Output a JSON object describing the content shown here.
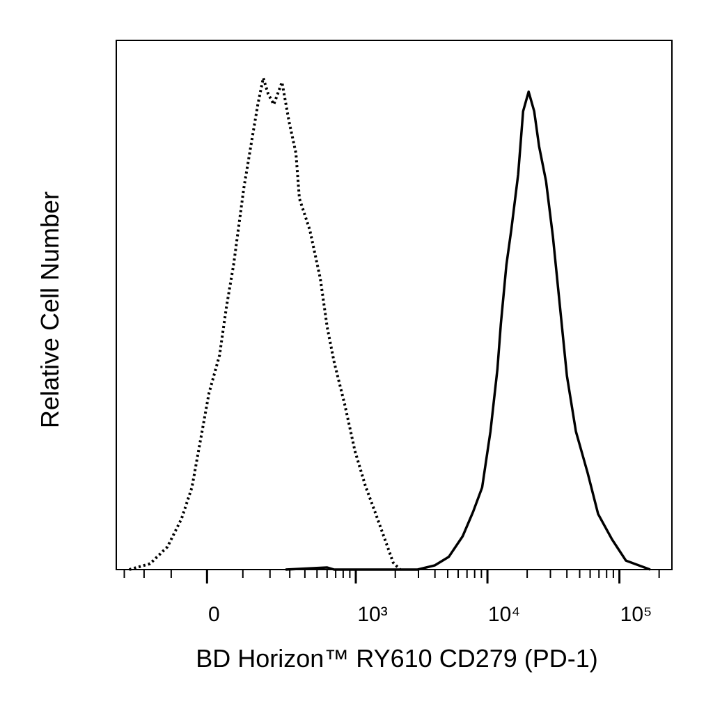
{
  "chart_data": {
    "type": "histogram-overlay",
    "x_label": "BD Horizon™ RY610 CD279 (PD-1)",
    "y_label": "Relative Cell Number",
    "xscale": "biexponential",
    "x_linear_width": 150,
    "xlim": [
      -350,
      250000
    ],
    "ylim": [
      0,
      100
    ],
    "xticks": [
      0,
      {
        "value": 1000,
        "label": "10³"
      },
      {
        "value": 10000,
        "label": "10⁴"
      },
      {
        "value": 100000,
        "label": "10⁵"
      }
    ],
    "xminorticks": [
      -300,
      -200,
      -100,
      100,
      200,
      300,
      400,
      500,
      600,
      700,
      800,
      900,
      2000,
      3000,
      4000,
      5000,
      6000,
      7000,
      8000,
      9000,
      20000,
      30000,
      40000,
      50000,
      60000,
      70000,
      80000,
      90000,
      200000
    ],
    "series": [
      {
        "style": "dotted",
        "color": "#000000",
        "x": [
          -272,
          -175,
          -112,
          -69,
          -40,
          -13,
          5,
          33,
          52,
          72,
          103,
          126,
          151,
          172,
          192,
          217,
          257,
          296,
          338,
          361,
          438,
          531,
          601,
          681,
          820,
          986,
          1185,
          1422,
          1707,
          1928,
          2178
        ],
        "values": [
          0,
          1.1,
          4.3,
          9.6,
          15.5,
          26.1,
          33.3,
          40.5,
          49.7,
          57.6,
          72.1,
          80,
          87.9,
          92.9,
          89.9,
          87.9,
          92.1,
          84.6,
          78.7,
          70.1,
          64.2,
          55,
          45.8,
          39.2,
          31.3,
          22.4,
          15.8,
          10.5,
          5.0,
          1.3,
          0
        ]
      },
      {
        "style": "solid",
        "color": "#000000",
        "x": [
          276,
          601,
          681,
          2953,
          3998,
          5089,
          6493,
          7784,
          9112,
          10535,
          11900,
          12640,
          13925,
          15165,
          17100,
          18630,
          20520,
          22620,
          24620,
          27780,
          31350,
          35440,
          40000,
          46800,
          57530,
          69000,
          87950,
          112000,
          171200
        ],
        "values": [
          0,
          0.4,
          0,
          0,
          0.8,
          2.4,
          6.3,
          10.9,
          15.5,
          26.1,
          37.9,
          46.4,
          57.6,
          64.2,
          74.7,
          86.6,
          90.3,
          86.6,
          80,
          73.4,
          62.9,
          49.7,
          36.6,
          26.1,
          18.2,
          10.5,
          5.7,
          1.7,
          0
        ]
      }
    ]
  }
}
